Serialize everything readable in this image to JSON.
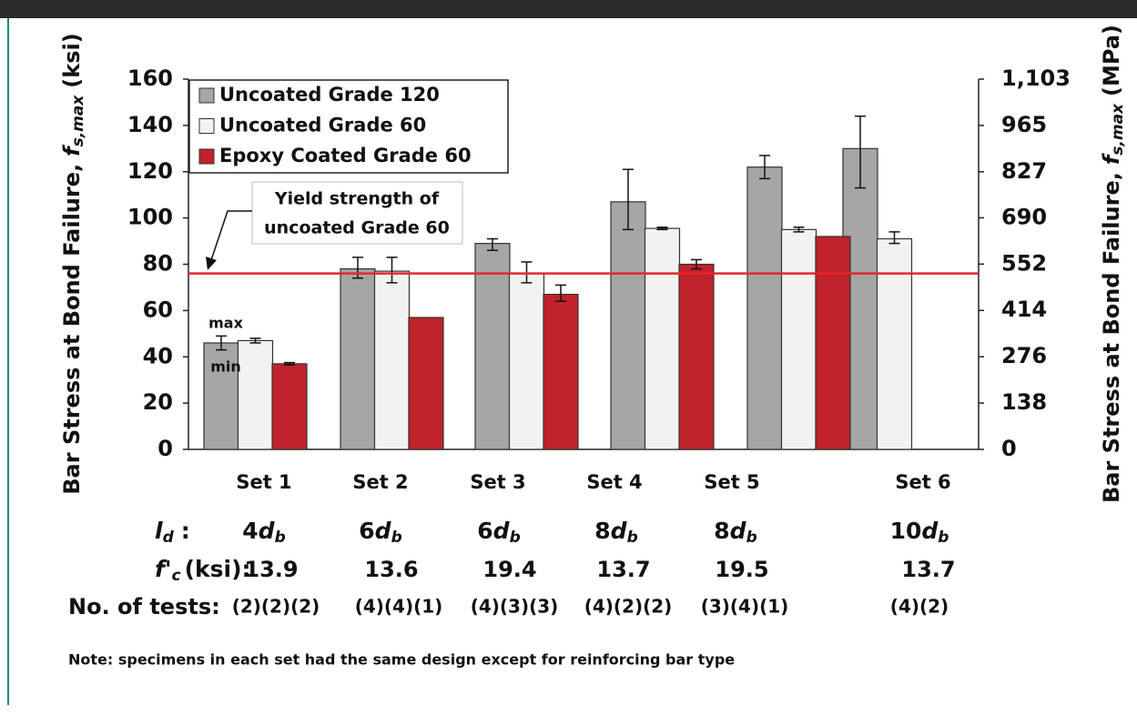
{
  "chart_data": {
    "type": "bar",
    "categories": [
      "Set 1",
      "Set 2",
      "Set 3",
      "Set 4",
      "Set 5",
      "Set 6"
    ],
    "series": [
      {
        "name": "Uncoated Grade 120",
        "color": "#a6a6a6",
        "values": [
          46,
          78,
          89,
          107,
          122,
          130
        ],
        "min": [
          43,
          74,
          86,
          95,
          117,
          113
        ],
        "max": [
          49,
          83,
          91,
          121,
          127,
          144
        ]
      },
      {
        "name": "Uncoated Grade 60",
        "color": "#f2f2f2",
        "values": [
          47,
          77,
          76,
          95.5,
          95,
          91
        ],
        "min": [
          46,
          72,
          72,
          95,
          94,
          89
        ],
        "max": [
          48,
          83,
          81,
          96,
          96,
          94
        ]
      },
      {
        "name": "Epoxy Coated Grade 60",
        "color": "#c0232b",
        "values": [
          37,
          57,
          67,
          80,
          92,
          null
        ],
        "min": [
          36.5,
          null,
          64,
          78,
          null,
          null
        ],
        "max": [
          37.5,
          null,
          71,
          82,
          null,
          null
        ]
      }
    ],
    "ylim": [
      0,
      160
    ],
    "yticks": [
      0,
      20,
      40,
      60,
      80,
      100,
      120,
      140,
      160
    ],
    "y2lim": [
      0,
      1103
    ],
    "y2ticks": [
      0,
      138,
      276,
      414,
      552,
      690,
      827,
      965,
      {
        "value": 1103,
        "label": "1,103"
      }
    ],
    "y_label": {
      "text": "Bar Stress at Bond Failure,",
      "symbol": "f",
      "subscript": "s,max",
      "unit": "(ksi)"
    },
    "y2_label": {
      "text": "Bar Stress at Bond Failure,",
      "symbol": "f",
      "subscript": "s,max",
      "unit": "(MPa)"
    },
    "legend": "upper left",
    "grid": false,
    "yield_line": {
      "value": 76,
      "color": "#e8262b",
      "annotation": [
        "Yield strength of",
        "uncoated Grade 60"
      ]
    },
    "error_labels": {
      "max": "max",
      "min": "min"
    },
    "rows": {
      "ld": {
        "symbol": "l",
        "subscript": "d",
        "suffix": ":",
        "values": [
          "4",
          "6",
          "6",
          "8",
          "8",
          "10"
        ],
        "unit_symbol": "d",
        "unit_subscript": "b"
      },
      "fc": {
        "symbol": "f'",
        "subscript": "c",
        "suffix": "(ksi):",
        "values": [
          13.9,
          13.6,
          19.4,
          13.7,
          19.5,
          13.7
        ]
      },
      "tests": {
        "label": "No. of tests:",
        "values": [
          "(2)(2)(2)",
          "(4)(4)(1)",
          "(4)(3)(3)",
          "(4)(2)(2)",
          "(3)(4)(1)",
          "(4)(2)"
        ]
      }
    },
    "note": "Note: specimens in each set had the same design except for reinforcing bar type"
  }
}
